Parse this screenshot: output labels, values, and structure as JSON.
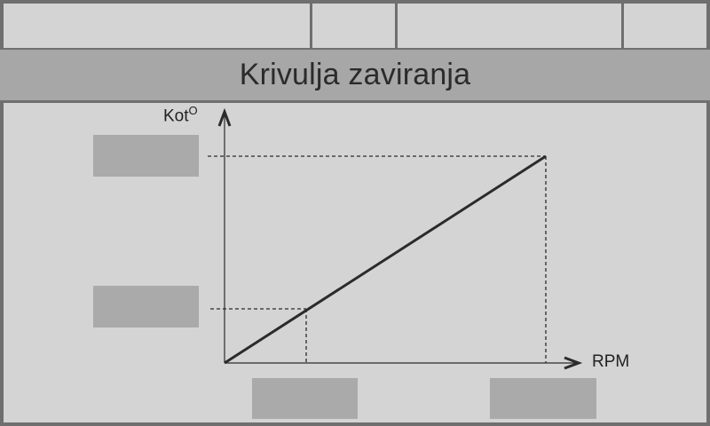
{
  "header": {
    "title": "Krivulja zaviranja"
  },
  "top_bar": {
    "cells": [
      "",
      "",
      "",
      ""
    ]
  },
  "chart_data": {
    "type": "line",
    "xlabel": "RPM",
    "ylabel": "Kot",
    "ylabel_superscript": "O",
    "series": [
      {
        "values": [
          0,
          1
        ]
      }
    ],
    "guides": [
      "low point",
      "high point"
    ]
  },
  "fields": {
    "y_high_value": "",
    "y_low_value": "",
    "x_low_value": "",
    "x_high_value": ""
  },
  "colors": {
    "background": "#6f6f6f",
    "panel": "#d4d4d4",
    "title_bar": "#a7a7a7",
    "field": "#aaaaaa",
    "line": "#2b2b2b"
  }
}
